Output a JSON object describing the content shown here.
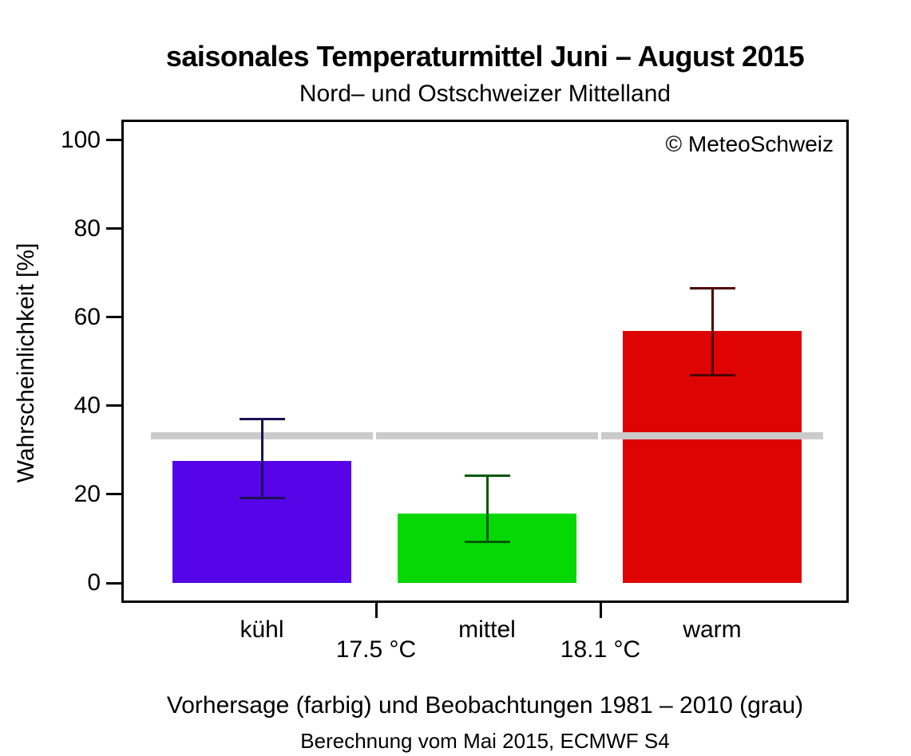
{
  "chart_data": {
    "type": "bar",
    "title": "saisonales Temperaturmittel Juni – August 2015",
    "subtitle": "Nord– und Ostschweizer Mittelland",
    "ylabel": "Wahrscheinlichkeit [%]",
    "xlabel": "",
    "ylim": [
      0,
      100
    ],
    "y_ticks": [
      0,
      20,
      40,
      60,
      80,
      100
    ],
    "grid": false,
    "legend_position": "none",
    "copyright": "© MeteoSchweiz",
    "caption": "Vorhersage (farbig) und Beobachtungen 1981 – 2010 (grau)",
    "caption2": "Berechnung vom Mai 2015, ECMWF S4",
    "climatology_reference_pct": 33.3,
    "categories": [
      {
        "label": "kühl",
        "value": 27.5,
        "err_low": 19.2,
        "err_high": 37.0,
        "bar_color": "#5505E8",
        "whisker_color": "#1C1152"
      },
      {
        "label": "mittel",
        "value": 15.6,
        "err_low": 9.2,
        "err_high": 24.3,
        "bar_color": "#06D806",
        "whisker_color": "#065806"
      },
      {
        "label": "warm",
        "value": 56.9,
        "err_low": 46.9,
        "err_high": 66.5,
        "bar_color": "#DF0404",
        "whisker_color": "#4D0404"
      }
    ],
    "boundary_labels": [
      "17.5 °C",
      "18.1 °C"
    ],
    "reference_color": "#CBCBCB"
  }
}
